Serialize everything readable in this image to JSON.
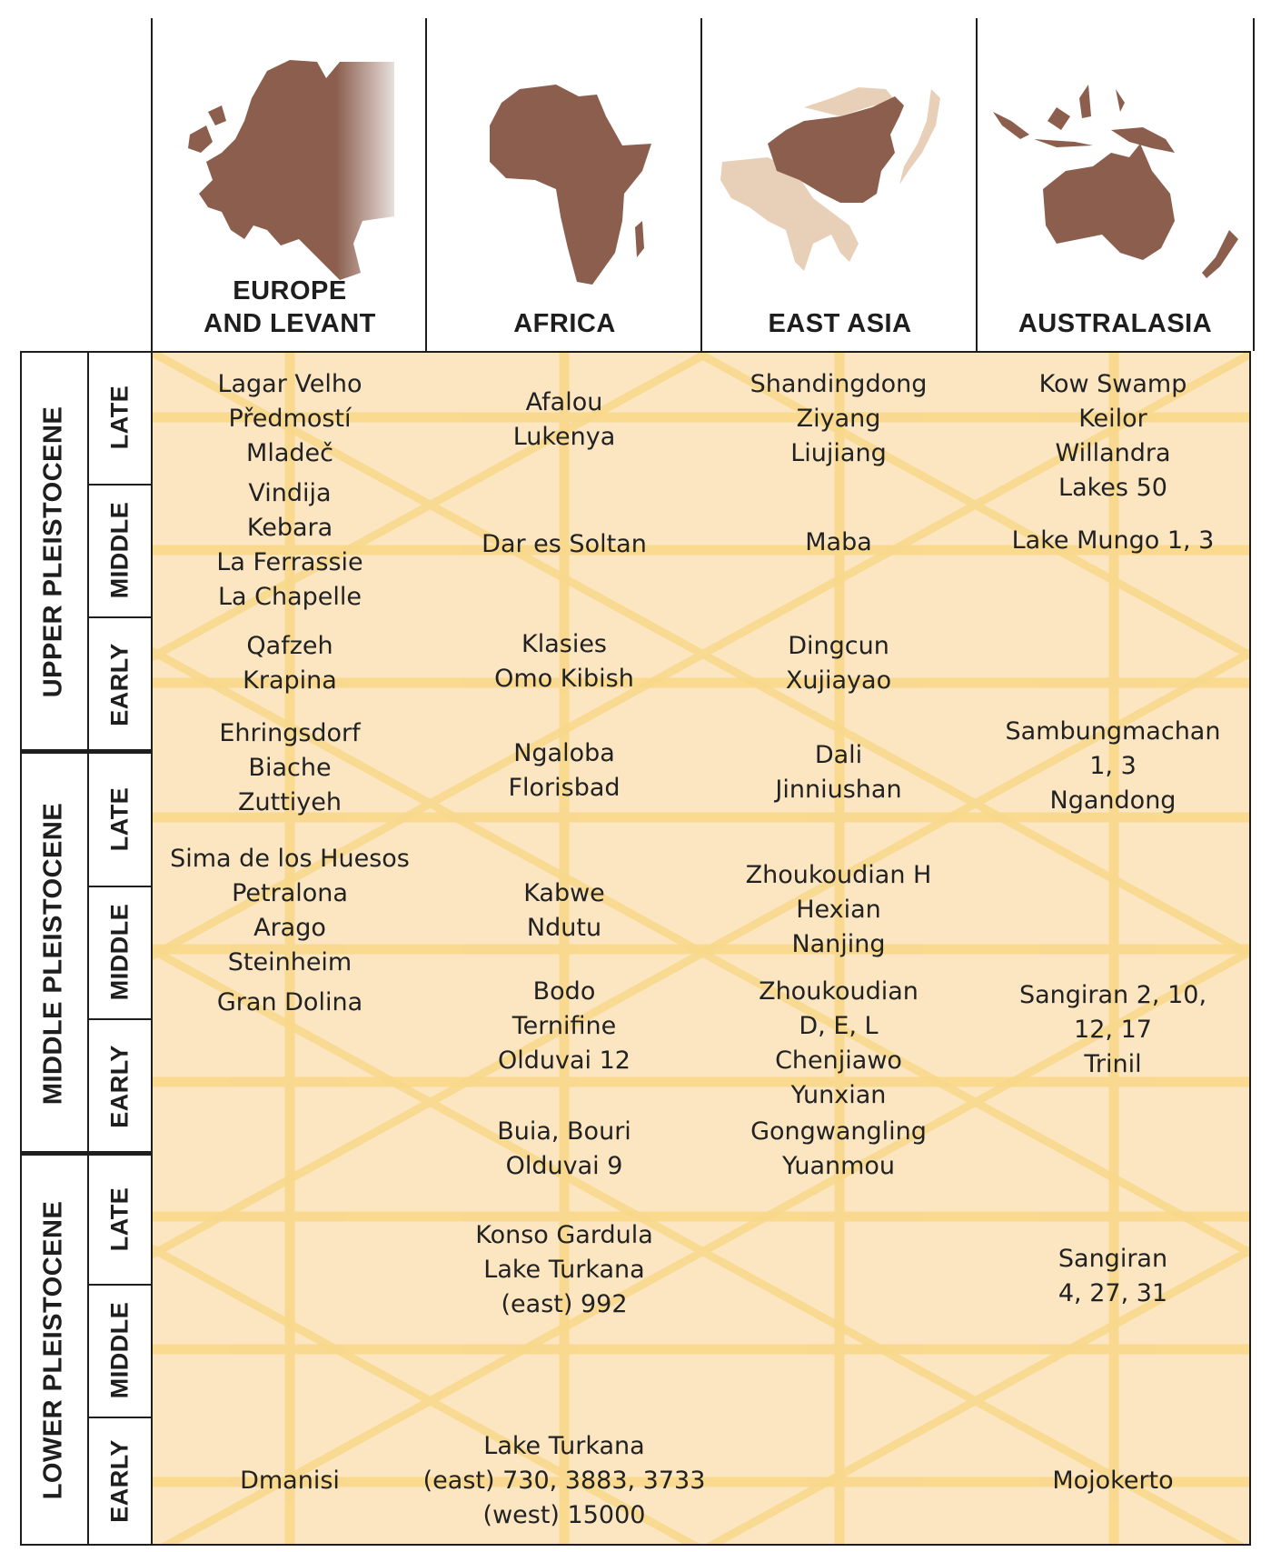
{
  "regions": [
    {
      "label_line1": "EUROPE",
      "label_line2": "AND LEVANT",
      "map_icon": "europe-map-icon"
    },
    {
      "label_line1": "AFRICA",
      "label_line2": "",
      "map_icon": "africa-map-icon"
    },
    {
      "label_line1": "EAST ASIA",
      "label_line2": "",
      "map_icon": "east-asia-map-icon"
    },
    {
      "label_line1": "AUSTRALASIA",
      "label_line2": "",
      "map_icon": "australasia-map-icon"
    }
  ],
  "colors": {
    "map_dark": "#8b5e4e",
    "map_light": "#e8cfb7",
    "grid_background": "#fbe6c1",
    "grid_lines": "#f8d88a",
    "rule": "#1e1e1e"
  },
  "epochs": [
    {
      "label": "UPPER PLEISTOCENE",
      "subperiods": [
        "LATE",
        "MIDDLE",
        "EARLY"
      ]
    },
    {
      "label": "MIDDLE PLEISTOCENE",
      "subperiods": [
        "LATE",
        "MIDDLE",
        "EARLY"
      ]
    },
    {
      "label": "LOWER PLEISTOCENE",
      "subperiods": [
        "LATE",
        "MIDDLE",
        "EARLY"
      ]
    }
  ],
  "sites": {
    "europe": [
      [
        "Lagar Velho",
        "Předmostí",
        "Mladeč"
      ],
      [
        "Vindija",
        "Kebara",
        "La Ferrassie",
        "La Chapelle"
      ],
      [
        "Qafzeh",
        "Krapina"
      ],
      [
        "Ehringsdorf",
        "Biache",
        "Zuttiyeh"
      ],
      [
        "Sima de los Huesos",
        "Petralona",
        "Arago",
        "Steinheim"
      ],
      [
        "Gran Dolina"
      ],
      [
        "Dmanisi"
      ]
    ],
    "africa": [
      [
        "Afalou",
        "Lukenya"
      ],
      [
        "Dar es Soltan"
      ],
      [
        "Klasies",
        "Omo Kibish"
      ],
      [
        "Ngaloba",
        "Florisbad"
      ],
      [
        "Kabwe",
        "Ndutu"
      ],
      [
        "Bodo",
        "Ternifine",
        "Olduvai 12"
      ],
      [
        "Buia, Bouri",
        "Olduvai 9"
      ],
      [
        "Konso Gardula",
        "Lake Turkana",
        "(east) 992"
      ],
      [
        "Lake Turkana",
        "(east) 730, 3883, 3733",
        "(west) 15000"
      ]
    ],
    "east_asia": [
      [
        "Shandingdong",
        "Ziyang",
        "Liujiang"
      ],
      [
        "Maba"
      ],
      [
        "Dingcun",
        "Xujiayao"
      ],
      [
        "Dali",
        "Jinniushan"
      ],
      [
        "Zhoukoudian H",
        "Hexian",
        "Nanjing"
      ],
      [
        "Zhoukoudian",
        "D, E, L",
        "Chenjiawo",
        "Yunxian"
      ],
      [
        "Gongwangling",
        "Yuanmou"
      ]
    ],
    "australasia": [
      [
        "Kow Swamp",
        "Keilor",
        "Willandra",
        "Lakes 50"
      ],
      [
        "Lake Mungo 1, 3"
      ],
      [
        "Sambungmachan",
        "1, 3",
        "Ngandong"
      ],
      [
        "Sangiran 2, 10,",
        "12, 17",
        "Trinil"
      ],
      [
        "Sangiran",
        "4, 27, 31"
      ],
      [
        "Mojokerto"
      ]
    ]
  }
}
